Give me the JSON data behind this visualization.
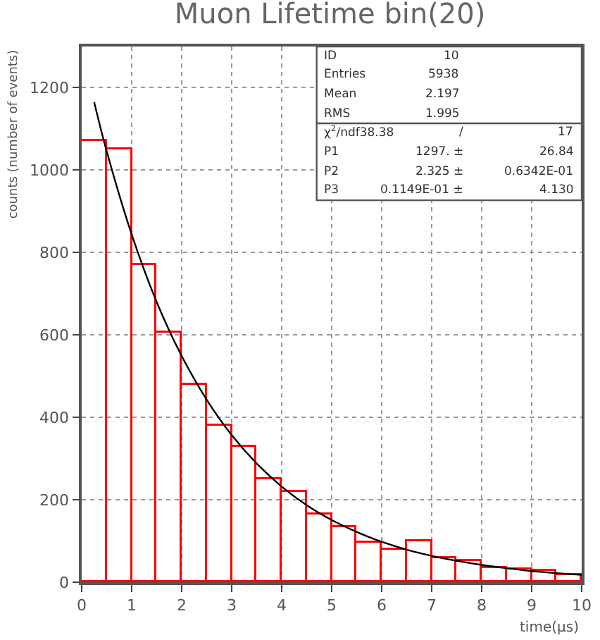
{
  "chart_data": {
    "type": "histogram",
    "title": "Muon Lifetime bin(20)",
    "xlabel": "time(μs)",
    "ylabel": "counts (number of events)",
    "bins": [
      0,
      0.5,
      1,
      1.5,
      2,
      2.5,
      3,
      3.5,
      4,
      4.5,
      5,
      5.5,
      6,
      6.5,
      7,
      7.5,
      8,
      8.5,
      9,
      9.5,
      10
    ],
    "series": [
      {
        "color": "#ff0000",
        "values": [
          1070,
          1050,
          770,
          605,
          480,
          380,
          330,
          250,
          220,
          163,
          132,
          95,
          78,
          98,
          58,
          51,
          34,
          32,
          27,
          17
        ]
      },
      {
        "type": "line",
        "color": "#000000",
        "x": [
          0.25,
          0.5,
          1,
          1.5,
          2,
          2.5,
          3,
          3.5,
          4,
          4.5,
          5,
          5.5,
          6,
          6.5,
          7,
          7.5,
          8,
          8.5,
          9,
          9.5,
          10
        ],
        "values": [
          1165,
          1046,
          844,
          680,
          549,
          443,
          357,
          288,
          232,
          187,
          151,
          122,
          98,
          79,
          64,
          52,
          42,
          34,
          27,
          22,
          18
        ]
      }
    ],
    "xlim": [
      0,
      10
    ],
    "xticks": [
      0,
      1,
      2,
      3,
      4,
      5,
      6,
      7,
      8,
      9,
      10
    ],
    "ylim": [
      0,
      1300
    ],
    "yticks": [
      0,
      200,
      400,
      600,
      800,
      1000,
      1200
    ],
    "grid": true,
    "annotations": [
      "ID",
      "10",
      "Entries",
      "5938",
      "Mean",
      "2.197",
      "RMS",
      "1.995",
      "χ$^{2}$/ndf38.38",
      "/",
      "17",
      "P1",
      "1297. ±",
      "26.84",
      "P2",
      "2.325 ±",
      "0.6342E-01",
      "P3",
      "0.1149E-01 ±",
      "4.130"
    ]
  }
}
